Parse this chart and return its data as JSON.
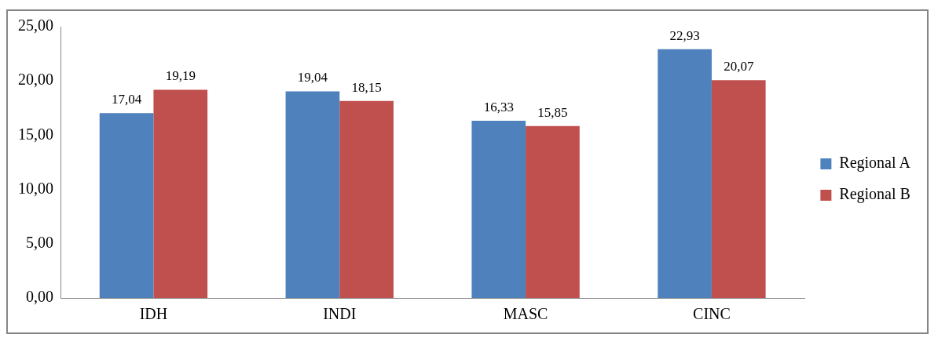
{
  "chart_data": {
    "type": "bar",
    "categories": [
      "IDH",
      "INDI",
      "MASC",
      "CINC"
    ],
    "series": [
      {
        "name": "Regional A",
        "color": "#4f81bd",
        "values": [
          17.04,
          19.04,
          16.33,
          22.93
        ],
        "value_labels": [
          "17,04",
          "19,04",
          "16,33",
          "22,93"
        ]
      },
      {
        "name": "Regional B",
        "color": "#c0504d",
        "values": [
          19.19,
          18.15,
          15.85,
          20.07
        ],
        "value_labels": [
          "19,19",
          "18,15",
          "15,85",
          "20,07"
        ]
      }
    ],
    "ylim": [
      0,
      25
    ],
    "yticks": [
      {
        "value": 0,
        "label": "0,00"
      },
      {
        "value": 5,
        "label": "5,00"
      },
      {
        "value": 10,
        "label": "10,00"
      },
      {
        "value": 15,
        "label": "15,00"
      },
      {
        "value": 20,
        "label": "20,00"
      },
      {
        "value": 25,
        "label": "25,00"
      }
    ],
    "grid": false,
    "legend": "right"
  }
}
